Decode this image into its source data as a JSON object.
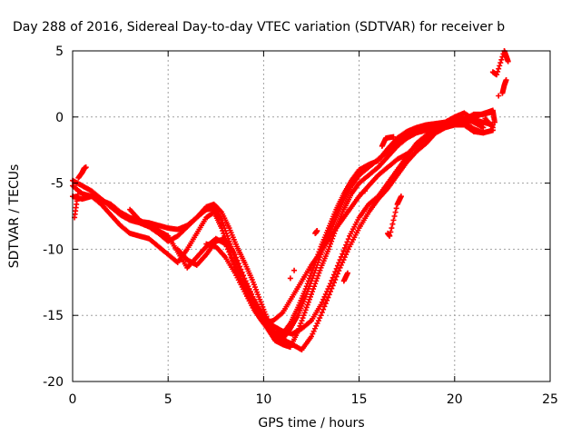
{
  "chart_data": {
    "type": "scatter",
    "title": "Day 288 of 2016, Sidereal Day-to-day VTEC variation (SDTVAR) for receiver b",
    "xlabel": "GPS time / hours",
    "ylabel": "SDTVAR / TECUs",
    "xlim": [
      0,
      25
    ],
    "ylim": [
      -20,
      5
    ],
    "xticks": [
      0,
      5,
      10,
      15,
      20,
      25
    ],
    "yticks": [
      -20,
      -15,
      -10,
      -5,
      0,
      5
    ],
    "grid": true,
    "marker": "plus",
    "color": "#ff0000",
    "series": [
      {
        "points": [
          [
            0,
            -5.2
          ],
          [
            0.5,
            -5.8
          ],
          [
            1,
            -6.0
          ],
          [
            1.5,
            -6.3
          ],
          [
            2,
            -6.6
          ],
          [
            2.5,
            -7.2
          ],
          [
            3,
            -7.6
          ],
          [
            3.5,
            -7.9
          ],
          [
            4,
            -8.0
          ],
          [
            4.5,
            -8.2
          ],
          [
            5,
            -8.4
          ],
          [
            5.5,
            -8.5
          ],
          [
            6,
            -8.2
          ],
          [
            6.5,
            -7.6
          ],
          [
            7,
            -6.8
          ],
          [
            7.4,
            -6.6
          ],
          [
            7.8,
            -7.2
          ],
          [
            8.2,
            -8.4
          ],
          [
            8.6,
            -9.8
          ],
          [
            9,
            -11.0
          ],
          [
            9.4,
            -12.3
          ],
          [
            9.8,
            -13.8
          ],
          [
            10.2,
            -15.3
          ],
          [
            10.6,
            -16.3
          ],
          [
            11,
            -16.4
          ],
          [
            11.4,
            -15.6
          ],
          [
            11.8,
            -14.4
          ],
          [
            12.2,
            -13.0
          ],
          [
            12.6,
            -11.4
          ],
          [
            13,
            -9.8
          ],
          [
            13.4,
            -8.4
          ],
          [
            13.8,
            -7.0
          ],
          [
            14.2,
            -5.8
          ],
          [
            14.6,
            -4.8
          ],
          [
            15,
            -4.0
          ],
          [
            15.5,
            -3.6
          ],
          [
            16,
            -3.3
          ],
          [
            16.5,
            -2.4
          ],
          [
            17,
            -1.6
          ],
          [
            17.5,
            -1.1
          ],
          [
            18,
            -0.8
          ],
          [
            18.5,
            -0.6
          ],
          [
            19,
            -0.5
          ],
          [
            19.5,
            -0.4
          ],
          [
            20,
            0.0
          ],
          [
            20.5,
            0.3
          ],
          [
            21,
            -0.2
          ],
          [
            21.5,
            -0.4
          ],
          [
            22,
            -0.6
          ]
        ]
      },
      {
        "points": [
          [
            0,
            -4.8
          ],
          [
            0.5,
            -5.2
          ],
          [
            1,
            -5.6
          ],
          [
            1.5,
            -6.2
          ],
          [
            2,
            -6.8
          ],
          [
            2.5,
            -7.4
          ],
          [
            3,
            -7.8
          ],
          [
            3.5,
            -8.0
          ],
          [
            4,
            -8.3
          ],
          [
            4.5,
            -8.8
          ],
          [
            5,
            -9.4
          ],
          [
            5.5,
            -9.0
          ],
          [
            6,
            -8.3
          ],
          [
            6.5,
            -7.6
          ],
          [
            7,
            -7.0
          ],
          [
            7.4,
            -6.9
          ],
          [
            7.8,
            -7.8
          ],
          [
            8.2,
            -9.4
          ],
          [
            8.6,
            -11.0
          ],
          [
            9,
            -12.4
          ],
          [
            9.4,
            -13.6
          ],
          [
            9.8,
            -14.8
          ],
          [
            10.2,
            -15.8
          ],
          [
            10.6,
            -16.6
          ],
          [
            11,
            -16.8
          ],
          [
            11.4,
            -16.0
          ],
          [
            11.8,
            -15.0
          ],
          [
            12.2,
            -13.6
          ],
          [
            12.6,
            -12.0
          ],
          [
            13,
            -10.4
          ],
          [
            13.4,
            -9.0
          ],
          [
            13.8,
            -7.6
          ],
          [
            14.2,
            -6.3
          ],
          [
            14.6,
            -5.2
          ],
          [
            15,
            -4.4
          ],
          [
            15.5,
            -3.8
          ],
          [
            16,
            -3.2
          ],
          [
            16.5,
            -2.6
          ],
          [
            17,
            -1.8
          ],
          [
            17.5,
            -1.4
          ],
          [
            18,
            -1.0
          ],
          [
            18.5,
            -0.8
          ],
          [
            19,
            -0.7
          ],
          [
            19.5,
            -0.5
          ],
          [
            20,
            -0.3
          ],
          [
            20.5,
            -0.1
          ],
          [
            21,
            -0.4
          ],
          [
            21.5,
            -0.8
          ]
        ]
      },
      {
        "points": [
          [
            0,
            -6.0
          ],
          [
            0.5,
            -6.2
          ],
          [
            1,
            -6.0
          ],
          [
            1.5,
            -6.6
          ],
          [
            2,
            -7.4
          ],
          [
            2.5,
            -8.2
          ],
          [
            3,
            -8.8
          ],
          [
            3.5,
            -9.0
          ],
          [
            4,
            -9.2
          ],
          [
            4.5,
            -9.8
          ],
          [
            5,
            -10.4
          ],
          [
            5.5,
            -11.0
          ],
          [
            6,
            -10.0
          ],
          [
            6.5,
            -8.8
          ],
          [
            7,
            -7.6
          ],
          [
            7.4,
            -7.2
          ],
          [
            7.8,
            -8.4
          ],
          [
            8.2,
            -10.0
          ],
          [
            8.6,
            -11.8
          ],
          [
            9,
            -13.0
          ],
          [
            9.4,
            -14.2
          ],
          [
            9.8,
            -15.2
          ],
          [
            10.2,
            -16.0
          ],
          [
            10.6,
            -16.9
          ],
          [
            11,
            -17.2
          ],
          [
            11.4,
            -17.4
          ],
          [
            11.8,
            -16.2
          ],
          [
            12.2,
            -14.6
          ],
          [
            12.6,
            -13.0
          ],
          [
            13,
            -11.4
          ],
          [
            13.4,
            -10.0
          ],
          [
            13.8,
            -8.4
          ],
          [
            14.2,
            -7.0
          ],
          [
            14.6,
            -5.8
          ],
          [
            15,
            -5.0
          ],
          [
            15.5,
            -4.4
          ],
          [
            16,
            -3.8
          ],
          [
            16.5,
            -3.0
          ],
          [
            17,
            -2.2
          ],
          [
            17.5,
            -1.6
          ],
          [
            18,
            -1.2
          ],
          [
            18.5,
            -1.0
          ],
          [
            19,
            -0.9
          ],
          [
            19.5,
            -0.7
          ],
          [
            20,
            -0.6
          ],
          [
            20.5,
            -0.4
          ],
          [
            21,
            -0.9
          ],
          [
            21.5,
            -1.2
          ],
          [
            22,
            -1.0
          ]
        ]
      },
      {
        "points": [
          [
            3,
            -7.0
          ],
          [
            3.5,
            -7.8
          ],
          [
            4,
            -8.2
          ],
          [
            4.5,
            -8.6
          ],
          [
            5,
            -9.0
          ],
          [
            5.5,
            -10.2
          ],
          [
            6,
            -11.4
          ],
          [
            6.5,
            -10.6
          ],
          [
            7,
            -9.8
          ],
          [
            7.5,
            -9.2
          ],
          [
            8,
            -9.6
          ],
          [
            8.5,
            -11.2
          ],
          [
            9,
            -12.8
          ],
          [
            9.5,
            -14.0
          ],
          [
            10,
            -15.0
          ],
          [
            10.5,
            -15.8
          ],
          [
            11,
            -16.2
          ],
          [
            11.5,
            -16.4
          ],
          [
            12,
            -16.0
          ],
          [
            12.5,
            -15.4
          ],
          [
            13,
            -14.2
          ],
          [
            13.5,
            -12.6
          ],
          [
            14,
            -10.8
          ],
          [
            14.5,
            -9.0
          ],
          [
            15,
            -7.6
          ],
          [
            15.5,
            -6.6
          ],
          [
            16,
            -6.0
          ],
          [
            16.5,
            -5.0
          ],
          [
            17,
            -4.0
          ],
          [
            17.5,
            -3.0
          ],
          [
            18,
            -2.0
          ],
          [
            18.5,
            -1.4
          ],
          [
            19,
            -1.0
          ],
          [
            19.5,
            -0.8
          ],
          [
            20,
            -0.6
          ],
          [
            20.5,
            -0.6
          ],
          [
            21,
            -1.1
          ],
          [
            21.5,
            -1.2
          ],
          [
            22,
            -1.0
          ]
        ]
      },
      {
        "points": [
          [
            5.5,
            -10.0
          ],
          [
            6,
            -10.8
          ],
          [
            6.5,
            -11.2
          ],
          [
            7,
            -10.4
          ],
          [
            7.5,
            -9.4
          ],
          [
            8,
            -9.2
          ],
          [
            8.5,
            -10.4
          ],
          [
            9,
            -12.2
          ],
          [
            9.5,
            -13.8
          ],
          [
            10,
            -15.2
          ],
          [
            10.5,
            -16.4
          ],
          [
            11,
            -16.8
          ],
          [
            11.5,
            -17.2
          ],
          [
            12,
            -17.6
          ],
          [
            12.5,
            -16.6
          ],
          [
            13,
            -15.0
          ],
          [
            13.5,
            -13.2
          ],
          [
            14,
            -11.4
          ],
          [
            14.5,
            -9.8
          ],
          [
            15,
            -8.4
          ],
          [
            15.5,
            -7.2
          ],
          [
            16,
            -6.2
          ],
          [
            16.5,
            -5.4
          ],
          [
            17,
            -4.4
          ],
          [
            17.5,
            -3.4
          ],
          [
            18,
            -2.6
          ],
          [
            18.5,
            -2.0
          ],
          [
            19,
            -1.2
          ],
          [
            19.5,
            -0.8
          ],
          [
            20,
            -0.5
          ],
          [
            20.5,
            -0.2
          ],
          [
            21,
            0.2
          ],
          [
            21.5,
            0.2
          ],
          [
            22,
            0.4
          ]
        ]
      },
      {
        "points": [
          [
            7,
            -9.6
          ],
          [
            7.5,
            -9.8
          ],
          [
            8,
            -10.6
          ],
          [
            8.5,
            -11.8
          ],
          [
            9,
            -13.2
          ],
          [
            9.5,
            -14.6
          ],
          [
            10,
            -15.6
          ],
          [
            10.5,
            -15.4
          ],
          [
            11,
            -14.8
          ],
          [
            11.5,
            -13.6
          ],
          [
            12,
            -12.4
          ],
          [
            12.5,
            -11.2
          ],
          [
            13,
            -10.2
          ],
          [
            13.5,
            -9.0
          ],
          [
            14,
            -8.0
          ],
          [
            14.5,
            -7.0
          ],
          [
            15,
            -6.0
          ],
          [
            15.5,
            -5.2
          ],
          [
            16,
            -4.4
          ],
          [
            16.5,
            -3.8
          ],
          [
            17,
            -3.2
          ],
          [
            17.5,
            -2.8
          ],
          [
            18,
            -2.2
          ],
          [
            18.5,
            -1.6
          ],
          [
            19,
            -1.2
          ],
          [
            19.5,
            -0.8
          ],
          [
            20,
            -0.4
          ],
          [
            20.5,
            -0.2
          ]
        ]
      },
      {
        "points": [
          [
            0.3,
            -4.6
          ],
          [
            0.5,
            -4.2
          ],
          [
            0.6,
            -3.9
          ],
          [
            0.7,
            -3.8
          ],
          [
            0.1,
            -7.6
          ],
          [
            0.3,
            -5.6
          ],
          [
            0.2,
            -5.0
          ]
        ]
      },
      {
        "points": [
          [
            11.6,
            -11.6
          ],
          [
            11.4,
            -12.2
          ],
          [
            12.7,
            -8.8
          ],
          [
            12.8,
            -8.6
          ],
          [
            14.2,
            -12.4
          ],
          [
            14.4,
            -11.8
          ],
          [
            16.5,
            -8.8
          ],
          [
            16.6,
            -9.0
          ],
          [
            17.0,
            -6.6
          ],
          [
            17.2,
            -6.0
          ],
          [
            15.3,
            -5.6
          ],
          [
            16.2,
            -2.2
          ],
          [
            16.4,
            -1.6
          ],
          [
            16.8,
            -1.5
          ]
        ]
      },
      {
        "points": [
          [
            20.8,
            0.0
          ],
          [
            21.2,
            0.1
          ],
          [
            21.6,
            0.3
          ],
          [
            22.0,
            0.5
          ],
          [
            22.1,
            -0.4
          ],
          [
            22.0,
            3.4
          ],
          [
            22.2,
            3.2
          ],
          [
            22.6,
            5.0
          ],
          [
            22.7,
            4.6
          ],
          [
            22.8,
            4.2
          ],
          [
            22.5,
            1.8
          ],
          [
            22.6,
            2.4
          ],
          [
            22.7,
            2.8
          ],
          [
            22.3,
            1.6
          ],
          [
            21.6,
            -0.1
          ],
          [
            22.0,
            -0.8
          ]
        ]
      }
    ]
  }
}
